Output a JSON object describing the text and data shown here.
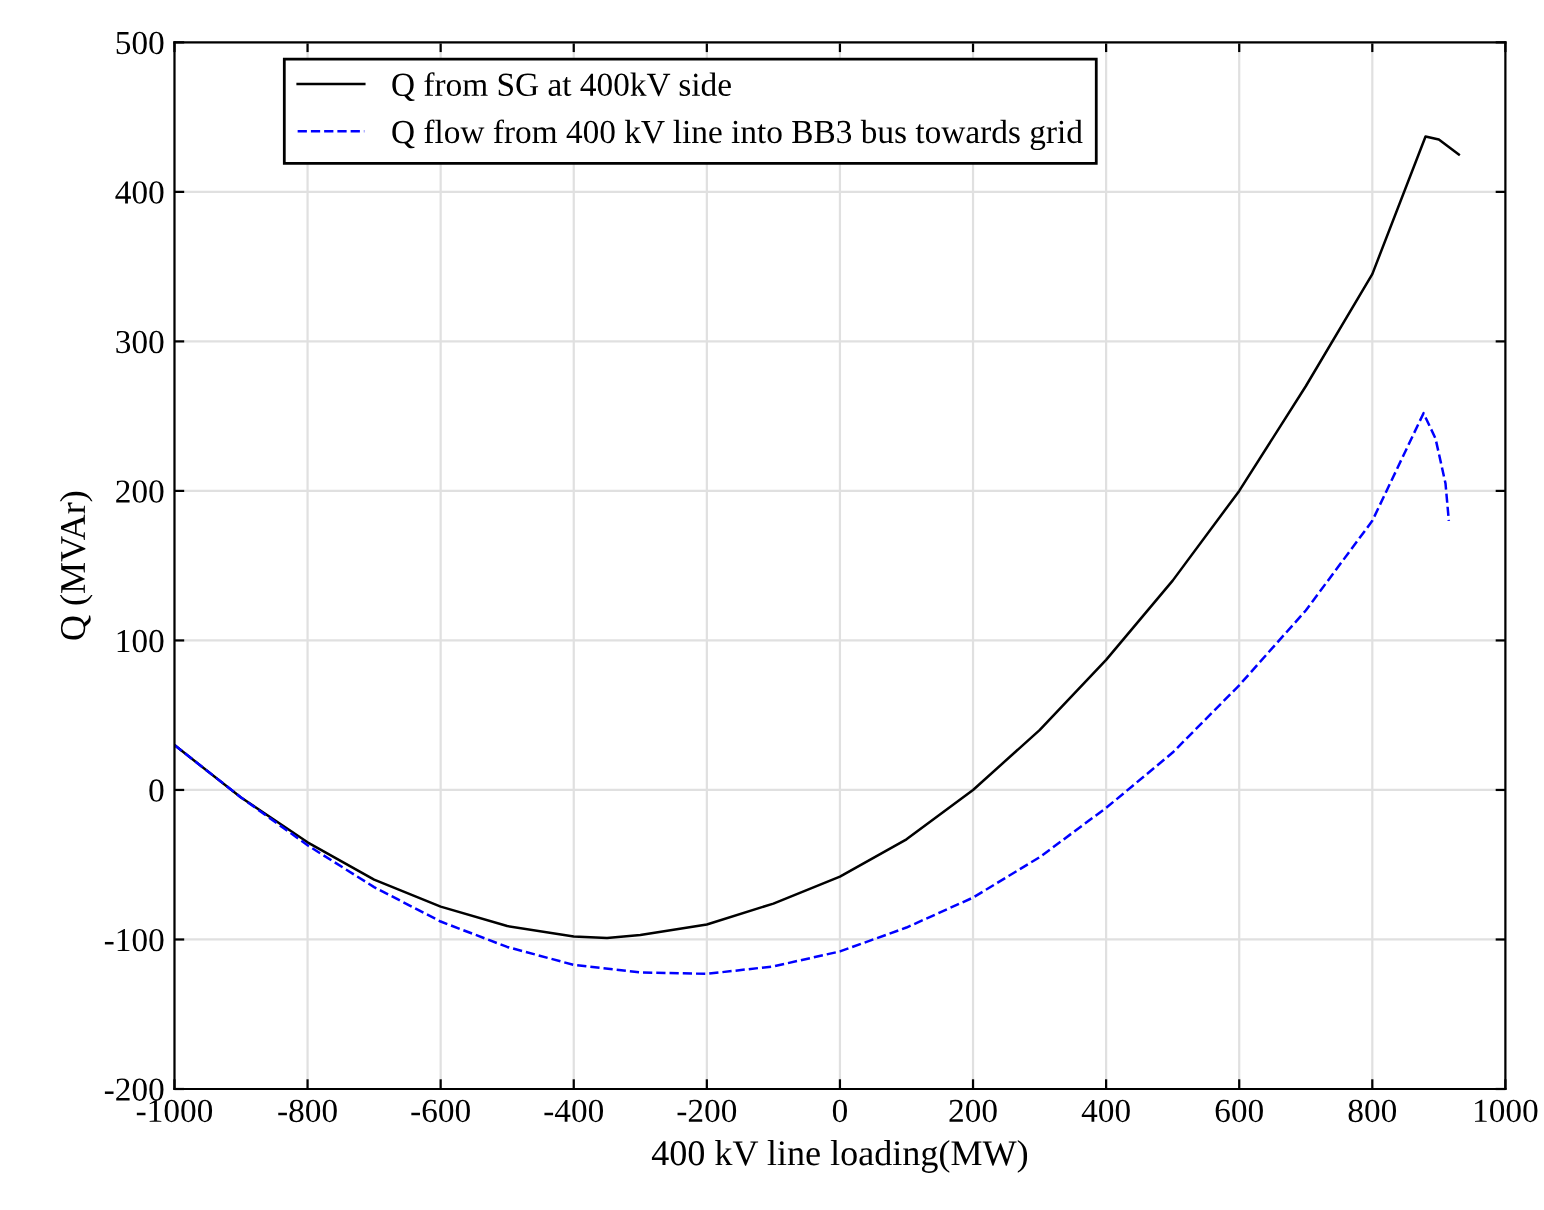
{
  "chart_data": {
    "type": "line",
    "xlabel": "400 kV line loading(MW)",
    "ylabel": "Q (MVAr)",
    "xlim": [
      -1000,
      1000
    ],
    "ylim": [
      -200,
      500
    ],
    "xticks": [
      -1000,
      -800,
      -600,
      -400,
      -200,
      0,
      200,
      400,
      600,
      800,
      1000
    ],
    "yticks": [
      -200,
      -100,
      0,
      100,
      200,
      300,
      400,
      500
    ],
    "grid": true,
    "legend": "top left",
    "series": [
      {
        "name": "Q from SG at 400kV side",
        "color": "#000000",
        "line_style": "solid",
        "x": [
          -1000,
          -900,
          -800,
          -700,
          -600,
          -500,
          -400,
          -350,
          -300,
          -200,
          -100,
          0,
          100,
          200,
          300,
          400,
          500,
          600,
          700,
          800,
          880,
          900,
          930
        ],
        "values": [
          30,
          -5,
          -35,
          -60,
          -78,
          -91,
          -98,
          -99,
          -97,
          -90,
          -76,
          -58,
          -33,
          0,
          40,
          87,
          140,
          200,
          270,
          345,
          437,
          435,
          425
        ]
      },
      {
        "name": "Q flow from 400 kV line into BB3 bus towards grid",
        "color": "#0000ff",
        "line_style": "dashed",
        "x": [
          -1000,
          -900,
          -800,
          -700,
          -600,
          -500,
          -400,
          -300,
          -200,
          -100,
          0,
          100,
          200,
          300,
          400,
          500,
          600,
          700,
          800,
          877,
          895,
          910,
          915
        ],
        "values": [
          30,
          -5,
          -37,
          -65,
          -88,
          -105,
          -117,
          -122,
          -123,
          -118,
          -108,
          -92,
          -72,
          -45,
          -12,
          25,
          70,
          120,
          180,
          252,
          235,
          205,
          180
        ]
      }
    ]
  }
}
